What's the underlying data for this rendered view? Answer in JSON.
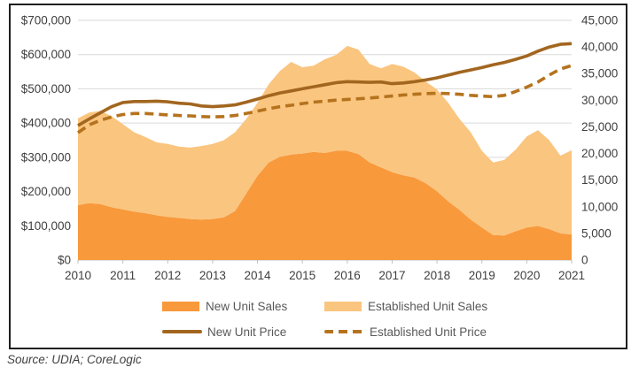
{
  "source": {
    "text": "Source: UDIA; CoreLogic"
  },
  "legend": {
    "items": [
      {
        "label": "New Unit Sales",
        "swatch": "area",
        "series": 0
      },
      {
        "label": "Established Unit Sales",
        "swatch": "area",
        "series": 1
      },
      {
        "label": "New Unit Price",
        "swatch": "line",
        "series": 2
      },
      {
        "label": "Established Unit Price",
        "swatch": "dashed-line",
        "series": 3
      }
    ]
  },
  "colors": {
    "new_unit_sales_area": "#F8993B",
    "established_unit_sales_area": "#FAC57F",
    "new_unit_price_line": "#A2661F",
    "established_unit_price_line": "#B5731E",
    "gridline": "#D9D9D9",
    "axis_line": "#BFBFBF",
    "axis_text": "#404040",
    "legend_text": "#595959",
    "frame_border": "#1F1F1F"
  },
  "chart_data": {
    "type": "combo-stacked-area-and-lines",
    "x": [
      2010.0,
      2010.25,
      2010.5,
      2010.75,
      2011.0,
      2011.25,
      2011.5,
      2011.75,
      2012.0,
      2012.25,
      2012.5,
      2012.75,
      2013.0,
      2013.25,
      2013.5,
      2013.75,
      2014.0,
      2014.25,
      2014.5,
      2014.75,
      2015.0,
      2015.25,
      2015.5,
      2015.75,
      2016.0,
      2016.25,
      2016.5,
      2016.75,
      2017.0,
      2017.25,
      2017.5,
      2017.75,
      2018.0,
      2018.25,
      2018.5,
      2018.75,
      2019.0,
      2019.25,
      2019.5,
      2019.75,
      2020.0,
      2020.25,
      2020.5,
      2020.75,
      2021.0
    ],
    "series": [
      {
        "name": "New Unit Sales",
        "type": "area",
        "stack": true,
        "axis": "right",
        "color": "#F8993B",
        "values": [
          10300,
          10700,
          10500,
          9900,
          9500,
          9100,
          8800,
          8400,
          8100,
          7900,
          7700,
          7600,
          7700,
          8000,
          9200,
          12500,
          15800,
          18300,
          19400,
          19800,
          20000,
          20300,
          20100,
          20500,
          20500,
          19900,
          18300,
          17400,
          16500,
          15900,
          15500,
          14400,
          12900,
          11000,
          9400,
          7600,
          6100,
          4700,
          4600,
          5400,
          6100,
          6400,
          5800,
          5000,
          4800
        ]
      },
      {
        "name": "Established Unit Sales",
        "type": "area",
        "stack": true,
        "axis": "right",
        "color": "#FAC57F",
        "values": [
          16300,
          17000,
          17500,
          17100,
          16000,
          14900,
          14300,
          13700,
          13700,
          13400,
          13400,
          13800,
          14100,
          14500,
          14800,
          14000,
          13700,
          14700,
          16100,
          17400,
          16200,
          16200,
          17600,
          18000,
          19700,
          19600,
          18500,
          18600,
          20300,
          20400,
          19700,
          19100,
          19100,
          18500,
          17100,
          16400,
          14400,
          13600,
          14200,
          15300,
          17100,
          18000,
          16700,
          14600,
          15800
        ]
      },
      {
        "name": "New Unit Price",
        "type": "line",
        "dash": "solid",
        "axis": "left",
        "color": "#A2661F",
        "values": [
          393000,
          412000,
          430000,
          448000,
          460000,
          463000,
          463000,
          464000,
          462000,
          458000,
          456000,
          450000,
          448000,
          450000,
          453000,
          461000,
          470000,
          480000,
          488000,
          494000,
          500000,
          506000,
          512000,
          518000,
          521000,
          520000,
          519000,
          520000,
          515000,
          517000,
          521000,
          526000,
          532000,
          540000,
          548000,
          555000,
          562000,
          570000,
          577000,
          586000,
          596000,
          610000,
          622000,
          630000,
          632000
        ]
      },
      {
        "name": "Established Unit Price",
        "type": "line",
        "dash": "dashed",
        "axis": "left",
        "color": "#B5731E",
        "values": [
          372000,
          395000,
          408000,
          418000,
          425000,
          428000,
          428000,
          426000,
          424000,
          422000,
          421000,
          419000,
          418000,
          419000,
          422000,
          428000,
          435000,
          442000,
          448000,
          452000,
          457000,
          461000,
          464000,
          467000,
          469000,
          471000,
          473000,
          476000,
          479000,
          482000,
          484000,
          486000,
          487000,
          486000,
          484000,
          481000,
          479000,
          477000,
          481000,
          492000,
          505000,
          520000,
          540000,
          558000,
          568000
        ]
      }
    ],
    "axes": {
      "left": {
        "min": 0,
        "max": 700000,
        "ticks": [
          {
            "value": 0,
            "label": "$0"
          },
          {
            "value": 100000,
            "label": "$100,000"
          },
          {
            "value": 200000,
            "label": "$200,000"
          },
          {
            "value": 300000,
            "label": "$300,000"
          },
          {
            "value": 400000,
            "label": "$400,000"
          },
          {
            "value": 500000,
            "label": "$500,000"
          },
          {
            "value": 600000,
            "label": "$600,000"
          },
          {
            "value": 700000,
            "label": "$700,000"
          }
        ]
      },
      "right": {
        "min": 0,
        "max": 45000,
        "ticks": [
          {
            "value": 0,
            "label": "0"
          },
          {
            "value": 5000,
            "label": "5,000"
          },
          {
            "value": 10000,
            "label": "10,000"
          },
          {
            "value": 15000,
            "label": "15,000"
          },
          {
            "value": 20000,
            "label": "20,000"
          },
          {
            "value": 25000,
            "label": "25,000"
          },
          {
            "value": 30000,
            "label": "30,000"
          },
          {
            "value": 35000,
            "label": "35,000"
          },
          {
            "value": 40000,
            "label": "40,000"
          },
          {
            "value": 45000,
            "label": "45,000"
          }
        ]
      },
      "x": {
        "min": 2010,
        "max": 2021,
        "ticks": [
          {
            "value": 2010,
            "label": "2010"
          },
          {
            "value": 2011,
            "label": "2011"
          },
          {
            "value": 2012,
            "label": "2012"
          },
          {
            "value": 2013,
            "label": "2013"
          },
          {
            "value": 2014,
            "label": "2014"
          },
          {
            "value": 2015,
            "label": "2015"
          },
          {
            "value": 2016,
            "label": "2016"
          },
          {
            "value": 2017,
            "label": "2017"
          },
          {
            "value": 2018,
            "label": "2018"
          },
          {
            "value": 2019,
            "label": "2019"
          },
          {
            "value": 2020,
            "label": "2020"
          },
          {
            "value": 2021,
            "label": "2021"
          }
        ]
      }
    }
  }
}
